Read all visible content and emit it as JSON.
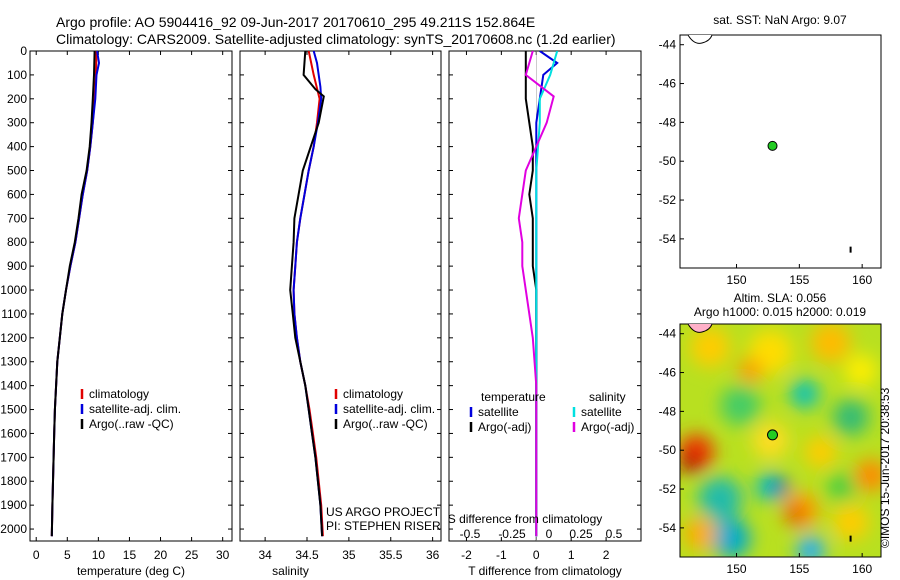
{
  "header": {
    "line1": "Argo profile: AO 5904416_92 09-Jun-2017 20170610_295 49.211S 152.864E",
    "line2": "Climatology: CARS2009. Satellite-adjusted climatology: synTS_20170608.nc (1.2d earlier)"
  },
  "colors": {
    "climatology": "#e00000",
    "satellite": "#0000dd",
    "argo": "#000000",
    "sat_salinity": "#00e0e0",
    "argo_salinity": "#e000e0"
  },
  "chart_data": [
    {
      "type": "line",
      "name": "temperature-profile",
      "xlabel": "temperature (deg C)",
      "xlim": [
        -1,
        31.5
      ],
      "ylim": [
        2050,
        0
      ],
      "y_inverted": true,
      "x_ticks": [
        0,
        5,
        10,
        15,
        20,
        25,
        30
      ],
      "y_ticks": [
        0,
        100,
        200,
        300,
        400,
        500,
        600,
        700,
        800,
        900,
        1000,
        1100,
        1200,
        1300,
        1400,
        1500,
        1600,
        1700,
        1800,
        1900,
        2000
      ],
      "legend": {
        "position": "center",
        "entries": [
          "climatology",
          "satellite-adj. clim.",
          "Argo(..raw -QC)"
        ]
      },
      "series": [
        {
          "name": "climatology",
          "color": "#e00000",
          "points": [
            [
              9.7,
              0
            ],
            [
              9.6,
              100
            ],
            [
              9.4,
              200
            ],
            [
              9.1,
              300
            ],
            [
              8.7,
              400
            ],
            [
              8.2,
              500
            ],
            [
              7.5,
              600
            ],
            [
              6.9,
              700
            ],
            [
              6.3,
              800
            ],
            [
              5.5,
              900
            ],
            [
              4.8,
              1000
            ],
            [
              4.2,
              1100
            ],
            [
              3.8,
              1200
            ],
            [
              3.4,
              1300
            ],
            [
              3.2,
              1400
            ],
            [
              3.0,
              1500
            ],
            [
              2.9,
              1600
            ],
            [
              2.8,
              1700
            ],
            [
              2.7,
              1800
            ],
            [
              2.6,
              1900
            ],
            [
              2.5,
              2030
            ]
          ]
        },
        {
          "name": "satellite-adj. clim.",
          "color": "#0000dd",
          "points": [
            [
              9.8,
              0
            ],
            [
              10.1,
              50
            ],
            [
              9.7,
              100
            ],
            [
              9.5,
              200
            ],
            [
              9.1,
              300
            ],
            [
              8.7,
              400
            ],
            [
              8.2,
              500
            ],
            [
              7.5,
              600
            ],
            [
              6.9,
              700
            ],
            [
              6.3,
              800
            ],
            [
              5.5,
              900
            ],
            [
              4.8,
              1000
            ],
            [
              4.2,
              1100
            ],
            [
              3.8,
              1200
            ],
            [
              3.4,
              1300
            ],
            [
              3.2,
              1400
            ],
            [
              3.0,
              1500
            ],
            [
              2.9,
              1600
            ],
            [
              2.8,
              1700
            ],
            [
              2.7,
              1800
            ],
            [
              2.6,
              1900
            ],
            [
              2.5,
              2030
            ]
          ]
        },
        {
          "name": "Argo(..raw -QC)",
          "color": "#000000",
          "points": [
            [
              9.4,
              0
            ],
            [
              9.3,
              100
            ],
            [
              9.1,
              200
            ],
            [
              8.9,
              300
            ],
            [
              8.6,
              400
            ],
            [
              8.1,
              500
            ],
            [
              7.3,
              600
            ],
            [
              6.8,
              700
            ],
            [
              6.2,
              800
            ],
            [
              5.4,
              900
            ],
            [
              4.8,
              1000
            ],
            [
              4.2,
              1100
            ],
            [
              3.8,
              1200
            ],
            [
              3.4,
              1300
            ],
            [
              3.2,
              1400
            ],
            [
              3.0,
              1500
            ],
            [
              2.9,
              1600
            ],
            [
              2.8,
              1700
            ],
            [
              2.7,
              1800
            ],
            [
              2.6,
              1900
            ],
            [
              2.5,
              2030
            ]
          ]
        }
      ]
    },
    {
      "type": "line",
      "name": "salinity-profile",
      "xlabel": "salinity",
      "xlim": [
        33.7,
        36.1
      ],
      "ylim": [
        2050,
        0
      ],
      "y_inverted": true,
      "x_ticks": [
        34,
        34.5,
        35,
        35.5,
        36
      ],
      "legend": {
        "position": "center",
        "entries": [
          "climatology",
          "satellite-adj. clim.",
          "Argo(..raw -QC)"
        ]
      },
      "annotation": [
        "US ARGO PROJECT",
        "PI: STEPHEN RISER"
      ],
      "series": [
        {
          "name": "climatology",
          "color": "#e00000",
          "points": [
            [
              34.52,
              0
            ],
            [
              34.58,
              100
            ],
            [
              34.65,
              200
            ],
            [
              34.62,
              300
            ],
            [
              34.58,
              400
            ],
            [
              34.52,
              500
            ],
            [
              34.47,
              600
            ],
            [
              34.42,
              700
            ],
            [
              34.38,
              800
            ],
            [
              34.36,
              900
            ],
            [
              34.34,
              1000
            ],
            [
              34.35,
              1100
            ],
            [
              34.38,
              1200
            ],
            [
              34.42,
              1300
            ],
            [
              34.48,
              1400
            ],
            [
              34.53,
              1500
            ],
            [
              34.57,
              1600
            ],
            [
              34.61,
              1700
            ],
            [
              34.64,
              1800
            ],
            [
              34.67,
              1900
            ],
            [
              34.69,
              2030
            ]
          ]
        },
        {
          "name": "satellite-adj. clim.",
          "color": "#0000dd",
          "points": [
            [
              34.58,
              0
            ],
            [
              34.62,
              50
            ],
            [
              34.66,
              150
            ],
            [
              34.67,
              200
            ],
            [
              34.63,
              300
            ],
            [
              34.58,
              400
            ],
            [
              34.52,
              500
            ],
            [
              34.47,
              600
            ],
            [
              34.42,
              700
            ],
            [
              34.38,
              800
            ],
            [
              34.36,
              900
            ],
            [
              34.34,
              1000
            ],
            [
              34.35,
              1100
            ],
            [
              34.38,
              1200
            ],
            [
              34.42,
              1300
            ],
            [
              34.48,
              1400
            ],
            [
              34.52,
              1500
            ],
            [
              34.56,
              1600
            ],
            [
              34.6,
              1700
            ],
            [
              34.63,
              1800
            ],
            [
              34.66,
              1900
            ],
            [
              34.68,
              2030
            ]
          ]
        },
        {
          "name": "Argo(..raw -QC)",
          "color": "#000000",
          "points": [
            [
              34.48,
              0
            ],
            [
              34.46,
              100
            ],
            [
              34.6,
              160
            ],
            [
              34.7,
              190
            ],
            [
              34.64,
              300
            ],
            [
              34.45,
              500
            ],
            [
              34.4,
              600
            ],
            [
              34.35,
              700
            ],
            [
              34.34,
              800
            ],
            [
              34.32,
              900
            ],
            [
              34.3,
              1000
            ],
            [
              34.33,
              1100
            ],
            [
              34.36,
              1200
            ],
            [
              34.42,
              1300
            ],
            [
              34.48,
              1400
            ],
            [
              34.52,
              1500
            ],
            [
              34.56,
              1600
            ],
            [
              34.6,
              1700
            ],
            [
              34.63,
              1800
            ],
            [
              34.66,
              1900
            ],
            [
              34.68,
              2030
            ]
          ]
        }
      ]
    },
    {
      "type": "line",
      "name": "difference-profile",
      "xlabel": "T difference from climatology",
      "x2label": "S difference from climatology",
      "xlim": [
        -2.5,
        3
      ],
      "ylim": [
        2050,
        0
      ],
      "y_inverted": true,
      "x_ticks": [
        -2,
        -1,
        0,
        1,
        2
      ],
      "x2_ticks": [
        "-0.5",
        "-0.25",
        "0",
        "0.25",
        "0.5"
      ],
      "legend": {
        "position": "center",
        "groups": [
          {
            "title": "temperature",
            "entries": [
              "satellite",
              "Argo(-adj)"
            ]
          },
          {
            "title": "salinity",
            "entries": [
              "satellite",
              "Argo(-adj)"
            ]
          }
        ]
      },
      "series": [
        {
          "name": "temperature satellite",
          "color": "#0000dd",
          "points": [
            [
              0.1,
              0
            ],
            [
              0.6,
              50
            ],
            [
              0.2,
              100
            ],
            [
              0.1,
              200
            ],
            [
              0,
              300
            ],
            [
              0,
              400
            ],
            [
              0,
              500
            ],
            [
              0,
              600
            ],
            [
              0,
              700
            ],
            [
              0,
              800
            ],
            [
              0,
              900
            ],
            [
              0,
              1000
            ],
            [
              0,
              1100
            ],
            [
              0,
              1200
            ],
            [
              0,
              1300
            ],
            [
              0,
              1400
            ],
            [
              0,
              1500
            ],
            [
              0,
              1600
            ],
            [
              0,
              1700
            ],
            [
              0,
              1800
            ],
            [
              0,
              1900
            ],
            [
              0,
              2030
            ]
          ]
        },
        {
          "name": "temperature Argo(-adj)",
          "color": "#000000",
          "points": [
            [
              -0.3,
              0
            ],
            [
              -0.3,
              100
            ],
            [
              -0.3,
              200
            ],
            [
              -0.2,
              300
            ],
            [
              -0.1,
              400
            ],
            [
              -0.1,
              500
            ],
            [
              -0.2,
              600
            ],
            [
              -0.1,
              700
            ],
            [
              -0.1,
              800
            ],
            [
              -0.1,
              900
            ],
            [
              0,
              1000
            ],
            [
              0,
              1100
            ],
            [
              0,
              1200
            ],
            [
              0,
              1300
            ],
            [
              0,
              1400
            ],
            [
              0,
              1500
            ],
            [
              0,
              1600
            ],
            [
              0,
              1700
            ],
            [
              0,
              1800
            ],
            [
              0,
              1900
            ],
            [
              0,
              2030
            ]
          ]
        },
        {
          "name": "salinity satellite",
          "color": "#00e0e0",
          "points": [
            [
              0.6,
              0
            ],
            [
              0.5,
              50
            ],
            [
              0.4,
              100
            ],
            [
              0.1,
              200
            ],
            [
              0.1,
              300
            ],
            [
              0,
              500
            ],
            [
              0,
              1000
            ],
            [
              0,
              1500
            ],
            [
              0,
              2030
            ]
          ]
        },
        {
          "name": "salinity Argo(-adj)",
          "color": "#e000e0",
          "points": [
            [
              -0.1,
              0
            ],
            [
              -0.3,
              100
            ],
            [
              0.5,
              190
            ],
            [
              0.3,
              300
            ],
            [
              -0.3,
              500
            ],
            [
              -0.5,
              700
            ],
            [
              -0.4,
              800
            ],
            [
              -0.4,
              900
            ],
            [
              -0.3,
              1000
            ],
            [
              -0.2,
              1100
            ],
            [
              -0.1,
              1200
            ],
            [
              0,
              1400
            ],
            [
              0,
              2030
            ]
          ]
        }
      ]
    },
    {
      "type": "scatter",
      "name": "sst-map",
      "title": "sat. SST: NaN Argo: 9.07",
      "xlim": [
        145.5,
        161.5
      ],
      "ylim": [
        -55.5,
        -43.5
      ],
      "x_ticks": [
        150,
        155,
        160
      ],
      "y_ticks": [
        -44,
        -46,
        -48,
        -50,
        -52,
        -54
      ],
      "marker": {
        "lon": 152.864,
        "lat": -49.211,
        "color": "#22cc22"
      }
    },
    {
      "type": "heatmap",
      "name": "sla-map",
      "title": [
        "Altim. SLA: 0.056",
        "Argo h1000: 0.015 h2000: 0.019"
      ],
      "xlim": [
        145.5,
        161.5
      ],
      "ylim": [
        -55.5,
        -43.5
      ],
      "x_ticks": [
        150,
        155,
        160
      ],
      "y_ticks": [
        -44,
        -46,
        -48,
        -50,
        -52,
        -54
      ],
      "marker": {
        "lon": 152.864,
        "lat": -49.211,
        "color": "#22cc22"
      }
    }
  ],
  "footer": {
    "stamp": "©IMOS 15-Jun-2017 20:38:53"
  }
}
